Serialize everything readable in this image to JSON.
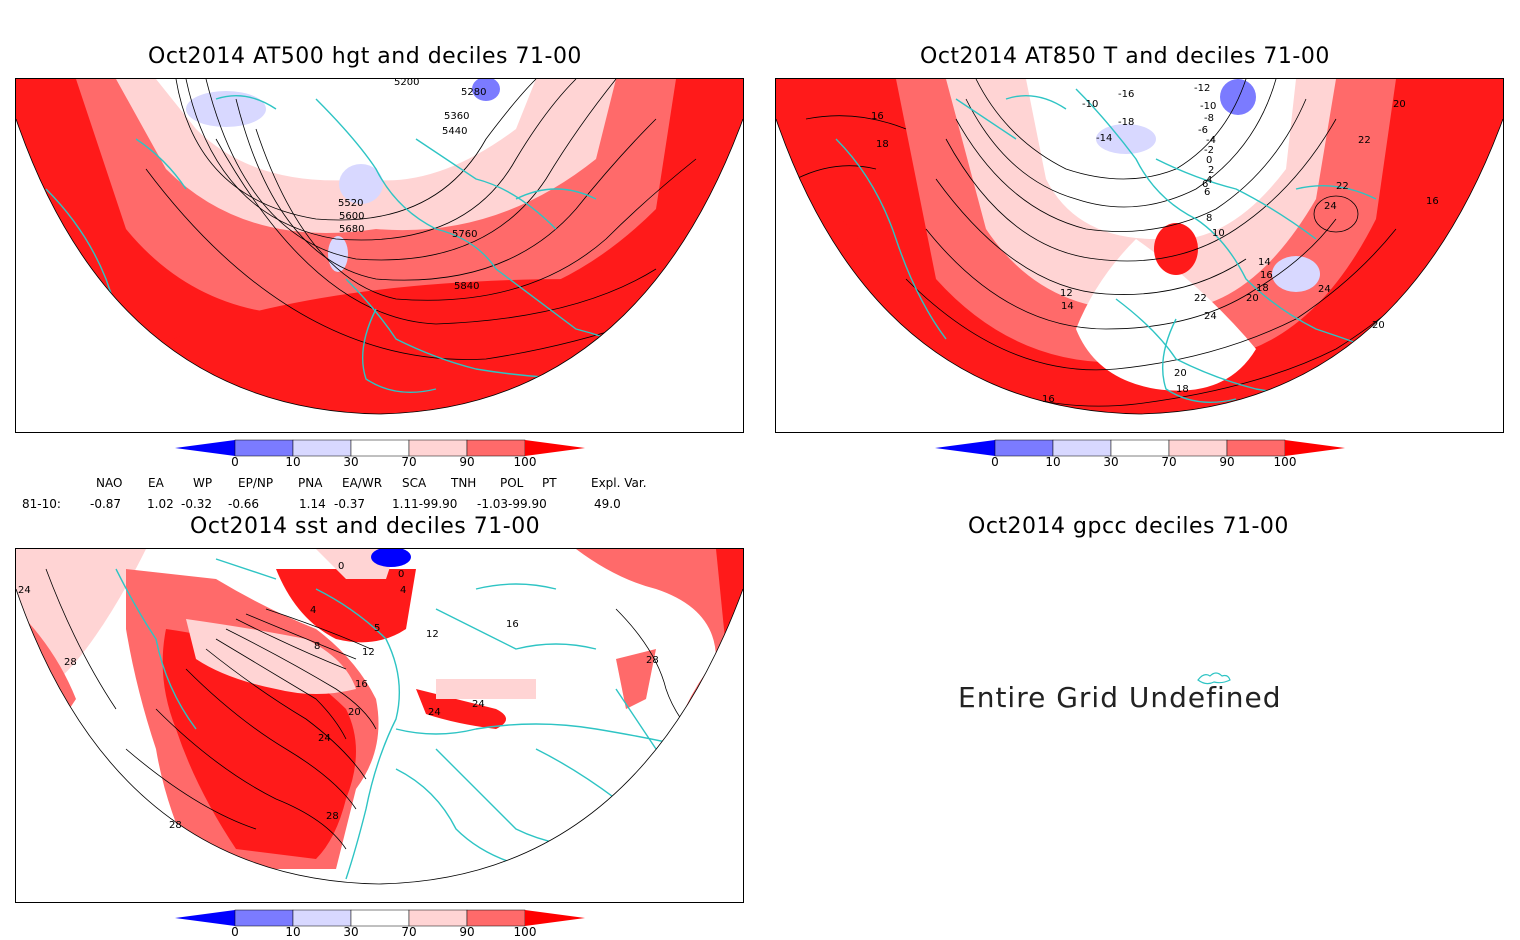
{
  "panels": {
    "p1": {
      "title": "Oct2014 AT500 hgt and deciles 71-00",
      "contour_labels": [
        "5280",
        "5360",
        "5440",
        "5520",
        "5600",
        "5680",
        "5760",
        "5840",
        "5200"
      ]
    },
    "p2": {
      "title": "Oct2014 AT850 T and deciles 71-00",
      "contour_labels": [
        "-16",
        "-12",
        "-10",
        "-10",
        "-8",
        "-6",
        "-4",
        "-2",
        "0",
        "2",
        "4",
        "6",
        "8",
        "10",
        "12",
        "14",
        "14",
        "16",
        "16",
        "16",
        "18",
        "18",
        "18",
        "20",
        "20",
        "20",
        "20",
        "22",
        "22",
        "22",
        "24",
        "24",
        "24",
        "-18",
        "-14",
        "6",
        "16"
      ]
    },
    "p3": {
      "title": "Oct2014 sst and deciles 71-00",
      "contour_labels": [
        "0",
        "0",
        "4",
        "4",
        "5",
        "8",
        "12",
        "16",
        "20",
        "24",
        "24",
        "24",
        "28",
        "28",
        "28",
        "28",
        "24",
        "12",
        "16"
      ]
    },
    "p4": {
      "title": "Oct2014 gpcc deciles 71-00",
      "message": "Entire Grid Undefined"
    }
  },
  "colorbar": {
    "ticks": [
      "0",
      "10",
      "30",
      "70",
      "90",
      "100"
    ],
    "colors": [
      "#0000ff",
      "#7b7bff",
      "#d8d8ff",
      "#ffffff",
      "#ffd4d4",
      "#ff6a6a",
      "#ff0000"
    ]
  },
  "indices": {
    "headers": [
      "NAO",
      "EA",
      "WP",
      "EP/NP",
      "PNA",
      "EA/WR",
      "SCA",
      "TNH",
      "POL",
      "PT",
      "Expl. Var."
    ],
    "row_label": "81-10:",
    "values": [
      "-0.87",
      "1.02",
      "-0.32",
      "-0.66",
      "1.14",
      "-0.37",
      "1.11-99.90",
      "-1.03-99.90",
      "49.0"
    ]
  }
}
